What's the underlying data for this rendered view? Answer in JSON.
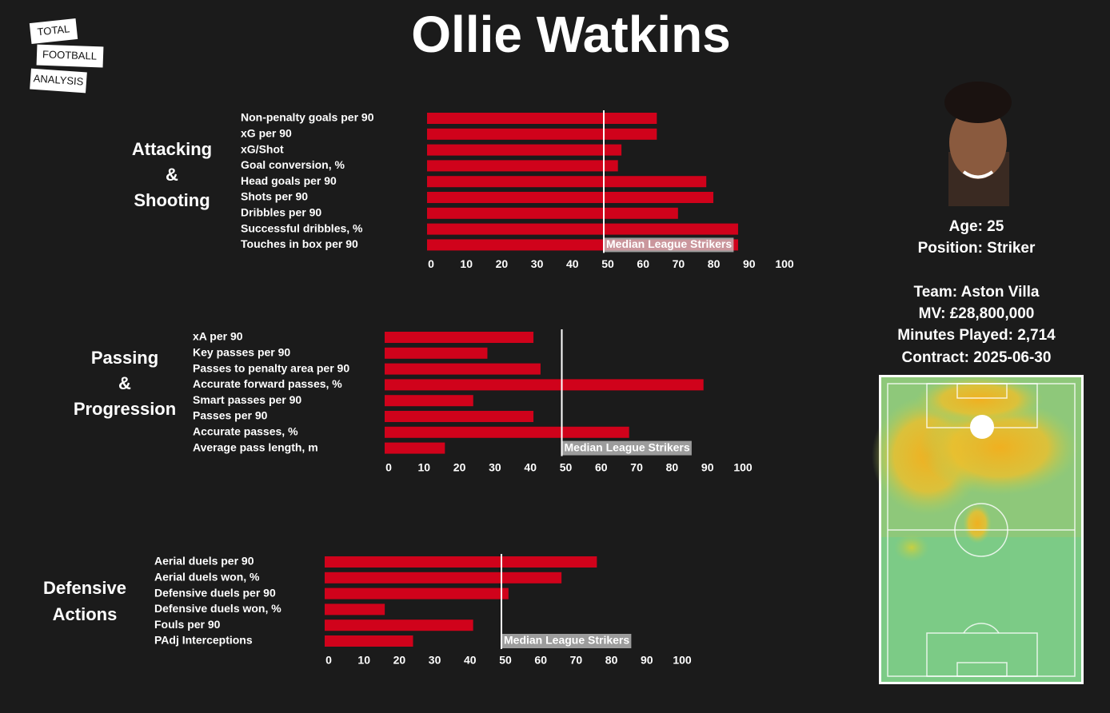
{
  "title": "Ollie Watkins",
  "logo": [
    "TOTAL",
    "FOOTBALL",
    "ANALYSIS"
  ],
  "info": [
    "Age: 25",
    "Position: Striker",
    "Team: Aston Villa",
    "MV: £28,800,000",
    "Minutes Played: 2,714",
    "Contract: 2025-06-30"
  ],
  "chart_data": [
    {
      "type": "bar",
      "orientation": "horizontal",
      "title": [
        "Attacking",
        "&",
        "Shooting"
      ],
      "categories": [
        "Non-penalty goals per 90",
        "xG per 90",
        "xG/Shot",
        "Goal conversion, %",
        "Head goals per 90",
        "Shots per 90",
        "Dribbles per 90",
        "Successful dribbles, %",
        "Touches in box per 90"
      ],
      "values": [
        65,
        65,
        55,
        54,
        79,
        81,
        71,
        88,
        88
      ],
      "color": "#d0021b",
      "median": 50,
      "median_label": "Median League Strikers",
      "xlim": [
        0,
        100
      ],
      "xticks": [
        0,
        10,
        20,
        30,
        40,
        50,
        60,
        70,
        80,
        90,
        100
      ]
    },
    {
      "type": "bar",
      "orientation": "horizontal",
      "title": [
        "Passing",
        "&",
        "Progression"
      ],
      "categories": [
        "xA per 90",
        "Key passes per 90",
        "Passes to penalty area per 90",
        "Accurate forward passes, %",
        "Smart passes per 90",
        "Passes per 90",
        "Accurate passes, %",
        "Average pass length, m"
      ],
      "values": [
        42,
        29,
        44,
        90,
        25,
        42,
        69,
        17
      ],
      "color": "#d0021b",
      "median": 50,
      "median_label": "Median League Strikers",
      "xlim": [
        0,
        100
      ],
      "xticks": [
        0,
        10,
        20,
        30,
        40,
        50,
        60,
        70,
        80,
        90,
        100
      ]
    },
    {
      "type": "bar",
      "orientation": "horizontal",
      "title": [
        "Defensive",
        "Actions"
      ],
      "categories": [
        "Aerial duels per 90",
        "Aerial duels won, %",
        "Defensive duels per 90",
        "Defensive duels won, %",
        "Fouls per 90",
        "PAdj Interceptions"
      ],
      "values": [
        77,
        67,
        52,
        17,
        42,
        25
      ],
      "color": "#d0021b",
      "median": 50,
      "median_label": "Median League Strikers",
      "xlim": [
        0,
        100
      ],
      "xticks": [
        0,
        10,
        20,
        30,
        40,
        50,
        60,
        70,
        80,
        90,
        100
      ]
    }
  ]
}
